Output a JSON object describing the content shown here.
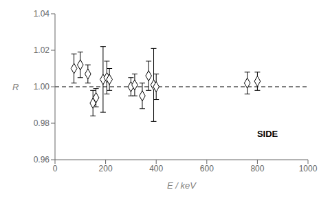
{
  "chart_data": {
    "type": "scatter",
    "title": "",
    "xlabel": "E / keV",
    "ylabel": "R",
    "x": [
      75,
      100,
      130,
      150,
      162,
      190,
      205,
      215,
      300,
      315,
      345,
      370,
      390,
      400,
      760,
      800
    ],
    "values": [
      1.01,
      1.012,
      1.007,
      0.991,
      0.994,
      1.004,
      1.005,
      1.004,
      1.0,
      1.001,
      0.995,
      1.006,
      1.001,
      1.0,
      1.002,
      1.003
    ],
    "yerr": [
      0.008,
      0.007,
      0.005,
      0.007,
      0.005,
      0.018,
      0.009,
      0.006,
      0.005,
      0.006,
      0.007,
      0.008,
      0.02,
      0.007,
      0.006,
      0.005
    ],
    "xlim": [
      0,
      1000
    ],
    "ylim": [
      0.96,
      1.04
    ],
    "xticks": [
      0,
      200,
      400,
      600,
      800,
      1000
    ],
    "yticks": [
      0.96,
      0.98,
      {
        "value": 1.0,
        "label": "1.00"
      },
      1.02,
      1.04
    ],
    "hlines": [
      {
        "y": 1.0,
        "line_style": "dashed",
        "color": "black"
      }
    ],
    "annotations": [
      {
        "text": "SIDE",
        "x": 840,
        "y": 0.974
      }
    ],
    "marker": "diamond",
    "color": "white",
    "grid": false
  }
}
